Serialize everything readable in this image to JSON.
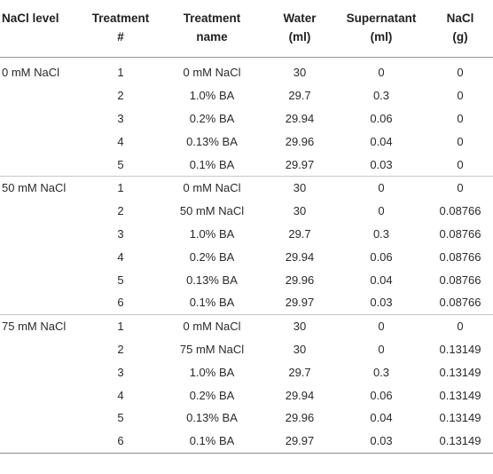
{
  "table": {
    "headers": [
      {
        "lines": [
          "NaCl level",
          ""
        ]
      },
      {
        "lines": [
          "Treatment",
          "#"
        ]
      },
      {
        "lines": [
          "Treatment",
          "name"
        ]
      },
      {
        "lines": [
          "Water",
          "(ml)"
        ]
      },
      {
        "lines": [
          "Supernatant",
          "(ml)"
        ]
      },
      {
        "lines": [
          "NaCl",
          "(g)"
        ]
      }
    ],
    "rows": [
      [
        "0 mM NaCl",
        "1",
        "0 mM NaCl",
        "30",
        "0",
        "0"
      ],
      [
        "",
        "2",
        "1.0% BA",
        "29.7",
        "0.3",
        "0"
      ],
      [
        "",
        "3",
        "0.2% BA",
        "29.94",
        "0.06",
        "0"
      ],
      [
        "",
        "4",
        "0.13% BA",
        "29.96",
        "0.04",
        "0"
      ],
      [
        "",
        "5",
        "0.1% BA",
        "29.97",
        "0.03",
        "0"
      ],
      [
        "50 mM NaCl",
        "1",
        "0 mM NaCl",
        "30",
        "0",
        "0"
      ],
      [
        "",
        "2",
        "50 mM NaCl",
        "30",
        "0",
        "0.08766"
      ],
      [
        "",
        "3",
        "1.0% BA",
        "29.7",
        "0.3",
        "0.08766"
      ],
      [
        "",
        "4",
        "0.2% BA",
        "29.94",
        "0.06",
        "0.08766"
      ],
      [
        "",
        "5",
        "0.13% BA",
        "29.96",
        "0.04",
        "0.08766"
      ],
      [
        "",
        "6",
        "0.1% BA",
        "29.97",
        "0.03",
        "0.08766"
      ],
      [
        "75 mM NaCl",
        "1",
        "0 mM NaCl",
        "30",
        "0",
        "0"
      ],
      [
        "",
        "2",
        "75 mM NaCl",
        "30",
        "0",
        "0.13149"
      ],
      [
        "",
        "3",
        "1.0% BA",
        "29.7",
        "0.3",
        "0.13149"
      ],
      [
        "",
        "4",
        "0.2% BA",
        "29.94",
        "0.06",
        "0.13149"
      ],
      [
        "",
        "5",
        "0.13% BA",
        "29.96",
        "0.04",
        "0.13149"
      ],
      [
        "",
        "6",
        "0.1% BA",
        "29.97",
        "0.03",
        "0.13149"
      ]
    ],
    "group_starts": [
      0,
      5,
      11
    ]
  }
}
